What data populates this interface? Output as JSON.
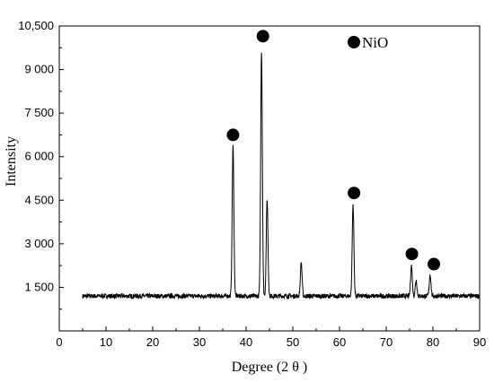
{
  "chart_data": {
    "type": "line",
    "xlabel": "Degree (2 θ )",
    "ylabel": "Intensity",
    "xlim": [
      0,
      90
    ],
    "ylim": [
      0,
      10500
    ],
    "x_ticks": [
      0,
      10,
      20,
      30,
      40,
      50,
      60,
      70,
      80,
      90
    ],
    "x_tick_labels": [
      "0",
      "10",
      "20",
      "30",
      "40",
      "50",
      "60",
      "70",
      "80",
      "90"
    ],
    "y_ticks": [
      1500,
      3000,
      4500,
      6000,
      7500,
      9000,
      10500
    ],
    "y_tick_labels": [
      "1 500",
      "3 000",
      "4 500",
      "6 000",
      "7 500",
      "9 000",
      "10,500"
    ],
    "grid": false,
    "legend": {
      "label": "NiO",
      "marker": "filled-circle",
      "placement": "top-right"
    },
    "series": [
      {
        "baseline": 1200,
        "x_range": [
          5,
          90
        ],
        "peaks": [
          {
            "x": 37.2,
            "y": 6350
          },
          {
            "x": 43.3,
            "y": 9650
          },
          {
            "x": 44.5,
            "y": 4550
          },
          {
            "x": 51.8,
            "y": 2350
          },
          {
            "x": 62.9,
            "y": 4350
          },
          {
            "x": 75.4,
            "y": 2250
          },
          {
            "x": 76.4,
            "y": 1750
          },
          {
            "x": 79.4,
            "y": 1950
          }
        ]
      }
    ],
    "markers": [
      {
        "x": 37.2,
        "y": 6750
      },
      {
        "x": 43.6,
        "y": 10150
      },
      {
        "x": 63.1,
        "y": 4750
      },
      {
        "x": 75.5,
        "y": 2650
      },
      {
        "x": 80.2,
        "y": 2300
      }
    ],
    "colors": {
      "line": "#000000",
      "marker": "#000000",
      "axis": "#000000"
    }
  }
}
